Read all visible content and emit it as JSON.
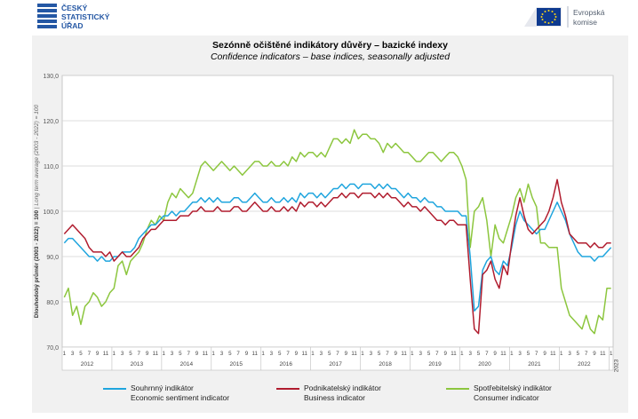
{
  "branding": {
    "csu_logo_lines": [
      "ČESKÝ",
      "STATISTICKÝ",
      "ÚŘAD"
    ],
    "ec_logo_lines": [
      "Evropská",
      "komise"
    ]
  },
  "colors": {
    "economic": "#1fa5de",
    "business": "#b01c2e",
    "consumer": "#8cc63e",
    "csu_blue": "#2457a4"
  },
  "chart_data": {
    "type": "line",
    "title": "Sezónně očištěné indikátory důvěry – bazické indexy",
    "subtitle": "Confidence indicators – base indices, seasonally adjusted",
    "ylabel": "Dlouhodobý průměr (2003 - 2022) = 100",
    "ylabel_en": "Long term average (2003 - 2022) = 100",
    "ylim": [
      70,
      130
    ],
    "yticks": [
      "70,0",
      "80,0",
      "90,0",
      "100,0",
      "110,0",
      "120,0",
      "130,0"
    ],
    "ytick_values": [
      70,
      80,
      90,
      100,
      110,
      120,
      130
    ],
    "grid": true,
    "month_ticks": [
      "1",
      "3",
      "5",
      "7",
      "9",
      "11"
    ],
    "years": [
      "2012",
      "2013",
      "2014",
      "2015",
      "2016",
      "2017",
      "2018",
      "2019",
      "2020",
      "2021",
      "2022",
      "2023"
    ],
    "x_start": "2012-01",
    "series": [
      {
        "key": "economic",
        "name": "Souhrnný indikátor",
        "name_en": "Economic sentiment indicator",
        "values": [
          93,
          94,
          94,
          93,
          92,
          91,
          90,
          90,
          89,
          90,
          89,
          89,
          90,
          90,
          91,
          91,
          91,
          92,
          94,
          95,
          96,
          97,
          97,
          98,
          99,
          99,
          100,
          99,
          100,
          100,
          101,
          102,
          102,
          103,
          102,
          103,
          102,
          103,
          102,
          102,
          102,
          103,
          103,
          102,
          102,
          103,
          104,
          103,
          102,
          102,
          103,
          102,
          102,
          103,
          102,
          103,
          102,
          104,
          103,
          104,
          104,
          103,
          104,
          103,
          104,
          105,
          105,
          106,
          105,
          106,
          106,
          105,
          106,
          106,
          106,
          105,
          106,
          105,
          106,
          105,
          105,
          104,
          103,
          104,
          103,
          103,
          102,
          103,
          102,
          102,
          101,
          101,
          100,
          100,
          100,
          100,
          99,
          99,
          90,
          78,
          79,
          87,
          89,
          90,
          87,
          86,
          89,
          88,
          92,
          97,
          100,
          98,
          97,
          96,
          95,
          96,
          96,
          98,
          100,
          102,
          100,
          98,
          95,
          93,
          91,
          90,
          90,
          90,
          89,
          90,
          90,
          91,
          92
        ]
      },
      {
        "key": "business",
        "name": "Podnikatelský indikátor",
        "name_en": "Business indicator",
        "values": [
          95,
          96,
          97,
          96,
          95,
          94,
          92,
          91,
          91,
          91,
          90,
          91,
          89,
          90,
          91,
          90,
          90,
          91,
          92,
          94,
          95,
          96,
          96,
          97,
          98,
          98,
          98,
          98,
          99,
          99,
          99,
          100,
          100,
          101,
          100,
          100,
          100,
          101,
          100,
          100,
          100,
          101,
          101,
          100,
          100,
          101,
          102,
          101,
          100,
          100,
          101,
          100,
          100,
          101,
          100,
          101,
          100,
          102,
          101,
          102,
          102,
          101,
          102,
          101,
          102,
          103,
          103,
          104,
          103,
          104,
          104,
          103,
          104,
          104,
          104,
          103,
          104,
          103,
          104,
          103,
          103,
          102,
          101,
          102,
          101,
          101,
          100,
          101,
          100,
          99,
          98,
          98,
          97,
          98,
          98,
          97,
          97,
          97,
          85,
          74,
          73,
          86,
          87,
          89,
          85,
          83,
          88,
          86,
          93,
          99,
          103,
          99,
          96,
          95,
          96,
          97,
          98,
          100,
          103,
          107,
          102,
          99,
          95,
          94,
          93,
          93,
          93,
          92,
          93,
          92,
          92,
          93,
          93
        ]
      },
      {
        "key": "consumer",
        "name": "Spotřebitelský indikátor",
        "name_en": "Consumer indicator",
        "values": [
          81,
          83,
          77,
          79,
          75,
          79,
          80,
          82,
          81,
          79,
          80,
          82,
          83,
          88,
          89,
          86,
          89,
          90,
          91,
          93,
          96,
          98,
          97,
          99,
          98,
          102,
          104,
          103,
          105,
          104,
          103,
          104,
          107,
          110,
          111,
          110,
          109,
          110,
          111,
          110,
          109,
          110,
          109,
          108,
          109,
          110,
          111,
          111,
          110,
          110,
          111,
          110,
          110,
          111,
          110,
          112,
          111,
          113,
          112,
          113,
          113,
          112,
          113,
          112,
          114,
          116,
          116,
          115,
          116,
          115,
          118,
          116,
          117,
          117,
          116,
          116,
          115,
          113,
          115,
          114,
          115,
          114,
          113,
          113,
          112,
          111,
          111,
          112,
          113,
          113,
          112,
          111,
          112,
          113,
          113,
          112,
          110,
          107,
          92,
          100,
          101,
          103,
          98,
          90,
          97,
          94,
          93,
          96,
          99,
          103,
          105,
          102,
          106,
          103,
          101,
          93,
          93,
          92,
          92,
          92,
          83,
          80,
          77,
          76,
          75,
          74,
          77,
          74,
          73,
          77,
          76,
          83,
          83
        ]
      }
    ]
  }
}
